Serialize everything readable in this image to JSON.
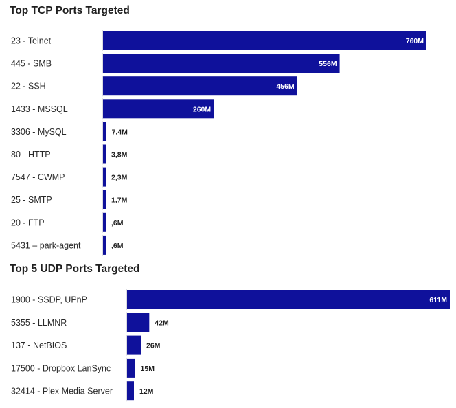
{
  "chart_data": [
    {
      "type": "bar",
      "orientation": "horizontal",
      "title": "Top TCP Ports Targeted",
      "categories": [
        "23 - Telnet",
        "445 - SMB",
        "22 - SSH",
        "1433 - MSSQL",
        "3306 - MySQL",
        "80 - HTTP",
        "7547 - CWMP",
        "25 - SMTP",
        "20 - FTP",
        "5431 – park-agent"
      ],
      "values": [
        760000000,
        556000000,
        456000000,
        260000000,
        7400000,
        3800000,
        2300000,
        1700000,
        600000,
        600000
      ],
      "value_labels": [
        "760M",
        "556M",
        "456M",
        "260M",
        "7,4M",
        "3,8M",
        "2,3M",
        "1,7M",
        ",6M",
        ",6M"
      ],
      "bar_color": "#0f119b",
      "grid": false
    },
    {
      "type": "bar",
      "orientation": "horizontal",
      "title": "Top 5 UDP Ports Targeted",
      "categories": [
        "1900 - SSDP, UPnP",
        "5355 - LLMNR",
        "137 - NetBIOS",
        "17500 - Dropbox LanSync",
        "32414 - Plex Media Server"
      ],
      "values": [
        611000000,
        42000000,
        26000000,
        15000000,
        12000000
      ],
      "value_labels": [
        "611M",
        "42M",
        "26M",
        "15M",
        "12M"
      ],
      "bar_color": "#0f119b",
      "grid": false
    }
  ]
}
